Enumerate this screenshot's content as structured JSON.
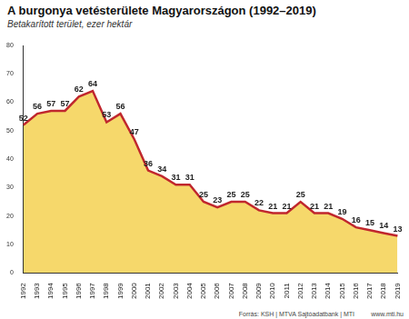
{
  "chart_data": {
    "type": "area",
    "title": "A burgonya vetésterülete Magyarországon (1992–2019)",
    "subtitle": "Betakarított terület, ezer hektár",
    "source": "Forrás: KSH | MTVA Sajtóadatbank | MTI",
    "credit": "www.mti.hu",
    "categories": [
      "1992",
      "1993",
      "1994",
      "1995",
      "1996",
      "1997",
      "1998",
      "1999",
      "2000",
      "2001",
      "2002",
      "2003",
      "2004",
      "2005",
      "2006",
      "2007",
      "2008",
      "2009",
      "2010",
      "2011",
      "2012",
      "2013",
      "2014",
      "2015",
      "2016",
      "2017",
      "2018",
      "2019"
    ],
    "values": [
      52,
      56,
      57,
      57,
      62,
      64,
      53,
      56,
      47,
      36,
      34,
      31,
      31,
      25,
      23,
      25,
      25,
      22,
      21,
      21,
      25,
      21,
      21,
      19,
      16,
      15,
      14,
      13
    ],
    "color": "#c0272d",
    "fill_color": "#f6d86b",
    "ylim": [
      0,
      80
    ],
    "yticks": [
      0,
      10,
      20,
      30,
      40,
      50,
      60,
      70,
      80
    ],
    "grid": false,
    "data_labels": true
  }
}
